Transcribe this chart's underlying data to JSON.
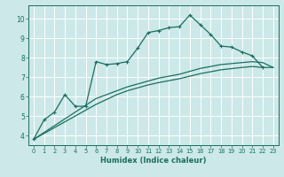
{
  "xlabel": "Humidex (Indice chaleur)",
  "xlim": [
    -0.5,
    23.5
  ],
  "ylim": [
    3.5,
    10.7
  ],
  "yticks": [
    4,
    5,
    6,
    7,
    8,
    9,
    10
  ],
  "xticks": [
    0,
    1,
    2,
    3,
    4,
    5,
    6,
    7,
    8,
    9,
    10,
    11,
    12,
    13,
    14,
    15,
    16,
    17,
    18,
    19,
    20,
    21,
    22,
    23
  ],
  "bg_color": "#cce8e8",
  "grid_color": "#ffffff",
  "line_color": "#1a6e60",
  "series1_x": [
    0,
    1,
    2,
    3,
    4,
    5,
    6,
    7,
    8,
    9,
    10,
    11,
    12,
    13,
    14,
    15,
    16,
    17,
    18,
    19,
    20,
    21,
    22
  ],
  "series1_y": [
    3.8,
    4.8,
    5.2,
    6.1,
    5.5,
    5.5,
    7.8,
    7.65,
    7.7,
    7.8,
    8.5,
    9.3,
    9.4,
    9.55,
    9.6,
    10.2,
    9.7,
    9.2,
    8.6,
    8.55,
    8.3,
    8.1,
    7.5
  ],
  "series2_x": [
    0,
    1,
    2,
    3,
    4,
    5,
    6,
    7,
    8,
    9,
    10,
    11,
    12,
    13,
    14,
    15,
    16,
    17,
    18,
    19,
    20,
    21,
    22,
    23
  ],
  "series2_y": [
    3.8,
    4.15,
    4.5,
    4.85,
    5.2,
    5.55,
    5.9,
    6.1,
    6.3,
    6.5,
    6.65,
    6.8,
    6.95,
    7.05,
    7.15,
    7.3,
    7.45,
    7.55,
    7.65,
    7.7,
    7.75,
    7.8,
    7.75,
    7.5
  ],
  "series3_x": [
    0,
    1,
    2,
    3,
    4,
    5,
    6,
    7,
    8,
    9,
    10,
    11,
    12,
    13,
    14,
    15,
    16,
    17,
    18,
    19,
    20,
    21,
    22,
    23
  ],
  "series3_y": [
    3.8,
    4.1,
    4.4,
    4.7,
    5.0,
    5.3,
    5.6,
    5.85,
    6.1,
    6.3,
    6.45,
    6.6,
    6.72,
    6.82,
    6.92,
    7.05,
    7.18,
    7.28,
    7.38,
    7.44,
    7.5,
    7.55,
    7.5,
    7.5
  ]
}
